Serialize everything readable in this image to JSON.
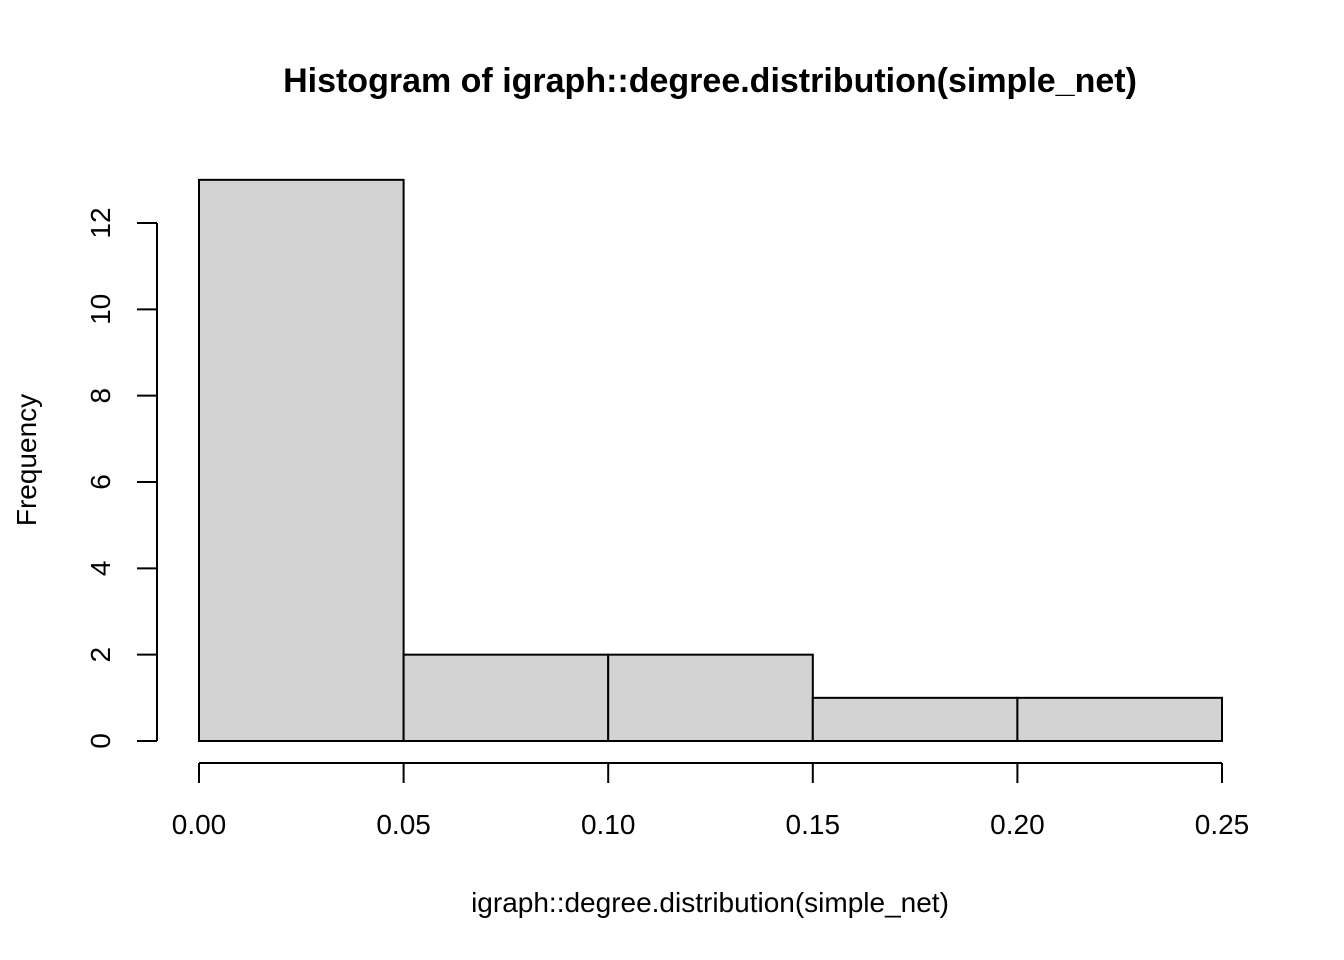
{
  "chart_data": {
    "type": "bar",
    "title": "Histogram of igraph::degree.distribution(simple_net)",
    "xlabel": "igraph::degree.distribution(simple_net)",
    "ylabel": "Frequency",
    "bins": [
      {
        "start": 0.0,
        "end": 0.05,
        "count": 13
      },
      {
        "start": 0.05,
        "end": 0.1,
        "count": 2
      },
      {
        "start": 0.1,
        "end": 0.15,
        "count": 2
      },
      {
        "start": 0.15,
        "end": 0.2,
        "count": 1
      },
      {
        "start": 0.2,
        "end": 0.25,
        "count": 1
      }
    ],
    "xlim": [
      0,
      0.25
    ],
    "ylim": [
      0,
      12
    ],
    "x_ticks": [
      0.0,
      0.05,
      0.1,
      0.15,
      0.2,
      0.25
    ],
    "x_tick_labels": [
      "0.00",
      "0.05",
      "0.10",
      "0.15",
      "0.20",
      "0.25"
    ],
    "y_ticks": [
      0,
      2,
      4,
      6,
      8,
      10,
      12
    ],
    "y_tick_labels": [
      "0",
      "2",
      "4",
      "6",
      "8",
      "10",
      "12"
    ],
    "colors": {
      "bar_fill": "#d3d3d3",
      "bar_stroke": "#000000"
    },
    "grid": false
  }
}
